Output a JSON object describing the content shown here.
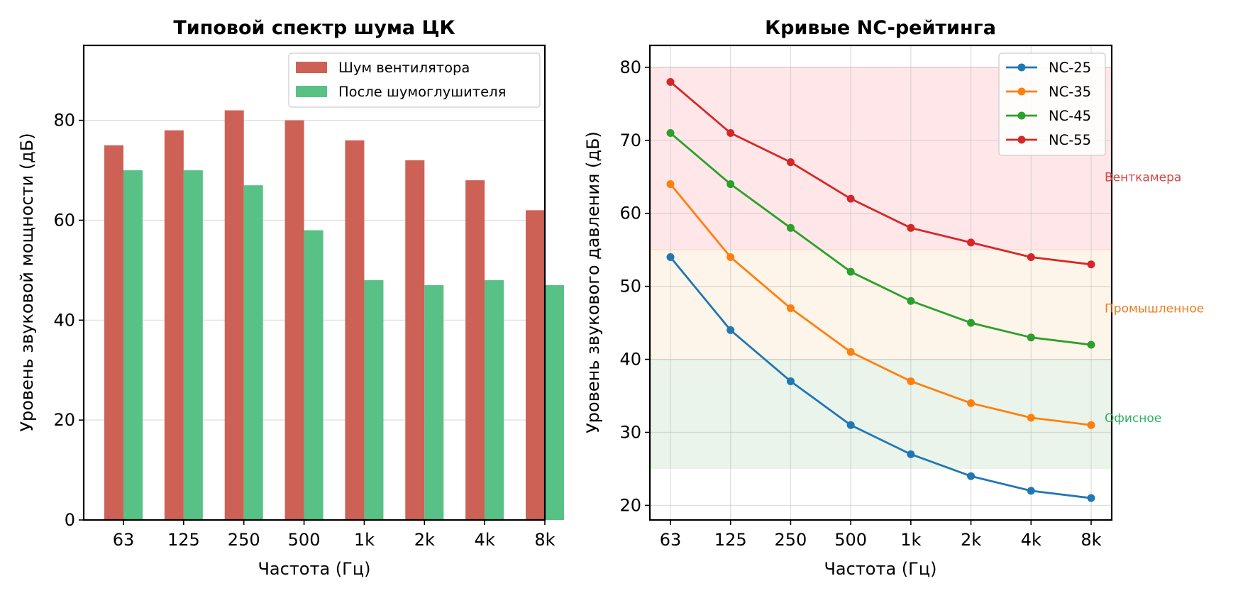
{
  "chart_data": [
    {
      "type": "bar",
      "title": "Типовой спектр шума ЦК",
      "xlabel": "Частота (Гц)",
      "ylabel": "Уровень звуковой мощности (дБ)",
      "categories": [
        "63",
        "125",
        "250",
        "500",
        "1k",
        "2k",
        "4k",
        "8k"
      ],
      "ylim": [
        0,
        95
      ],
      "yticks": [
        0,
        20,
        40,
        60,
        80
      ],
      "grid": "horizontal",
      "legend_position": "top-right",
      "series": [
        {
          "name": "Шум вентилятора",
          "values": [
            75,
            78,
            82,
            80,
            76,
            72,
            68,
            62
          ],
          "color": "#cd6155"
        },
        {
          "name": "После шумоглушителя",
          "values": [
            70,
            70,
            67,
            58,
            48,
            47,
            48,
            47
          ],
          "color": "#58c185"
        }
      ]
    },
    {
      "type": "line",
      "title": "Кривые NC-рейтинга",
      "xlabel": "Частота (Гц)",
      "ylabel": "Уровень звукового давления (дБ)",
      "categories": [
        "63",
        "125",
        "250",
        "500",
        "1k",
        "2k",
        "4k",
        "8k"
      ],
      "ylim": [
        18,
        83
      ],
      "yticks": [
        20,
        30,
        40,
        50,
        60,
        70,
        80
      ],
      "grid": "both",
      "legend_position": "top-right",
      "series": [
        {
          "name": "NC-25",
          "values": [
            54,
            44,
            37,
            31,
            27,
            24,
            22,
            21
          ],
          "color": "#1f77b4"
        },
        {
          "name": "NC-35",
          "values": [
            64,
            54,
            47,
            41,
            37,
            34,
            32,
            31
          ],
          "color": "#ff7f0e"
        },
        {
          "name": "NC-45",
          "values": [
            71,
            64,
            58,
            52,
            48,
            45,
            43,
            42
          ],
          "color": "#2ca02c"
        },
        {
          "name": "NC-55",
          "values": [
            78,
            71,
            67,
            62,
            58,
            56,
            54,
            53
          ],
          "color": "#d62728"
        }
      ],
      "zones": [
        {
          "label": "Венткамера",
          "from": 55,
          "to": 80,
          "fill": "#ffe7e9",
          "text_color": "#d64541",
          "label_y": 65
        },
        {
          "label": "Промышленное",
          "from": 40,
          "to": 55,
          "fill": "#fef5ea",
          "text_color": "#ec7d1f",
          "label_y": 47
        },
        {
          "label": "Офисное",
          "from": 25,
          "to": 40,
          "fill": "#eaf4ea",
          "text_color": "#2eb160",
          "label_y": 32
        }
      ]
    }
  ]
}
